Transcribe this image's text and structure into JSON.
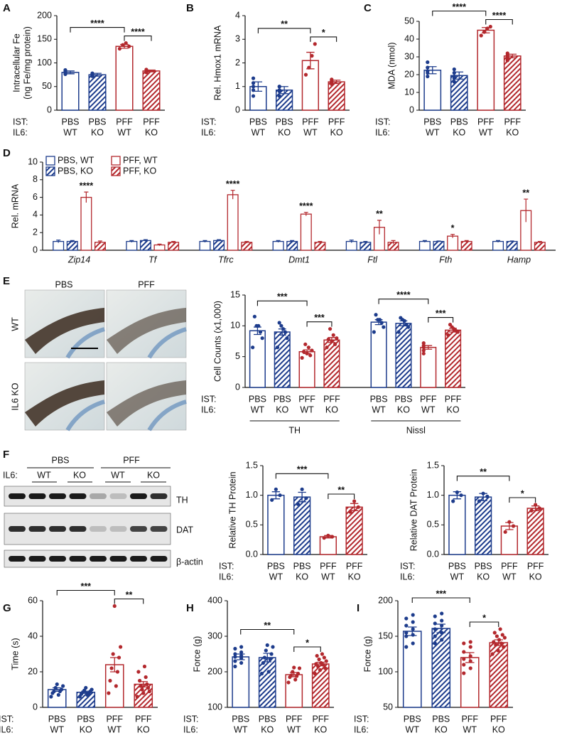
{
  "panel_labels": [
    "A",
    "B",
    "C",
    "D",
    "E",
    "F",
    "G",
    "H",
    "I"
  ],
  "micrographs": {
    "columns": [
      "PBS",
      "PFF"
    ],
    "rows": [
      "WT",
      "IL6 KO"
    ]
  },
  "blot": {
    "groups": [
      "PBS",
      "PFF"
    ],
    "row_label": "IL6:",
    "lanes": [
      "WT",
      "KO",
      "WT",
      "KO"
    ],
    "proteins": [
      "TH",
      "DAT",
      "β-actin"
    ]
  },
  "chart_data": [
    {
      "type": "bar",
      "ylabel": [
        "Intracellular Fe",
        "(ng Fe/mg protein)"
      ],
      "ylim": [
        0,
        200
      ],
      "yticks": [
        0,
        50,
        100,
        150,
        200
      ],
      "row_labels": [
        "IST:",
        "IL6:"
      ],
      "categories": [
        "PBS",
        "PBS",
        "PFF",
        "PFF"
      ],
      "subcategories": [
        "WT",
        "KO",
        "WT",
        "KO"
      ],
      "colors": [
        "#1d3c8c",
        "#1d3c8c",
        "#b3282d",
        "#b3282d"
      ],
      "hatched": [
        false,
        true,
        false,
        true
      ],
      "values": [
        80,
        75,
        135,
        83
      ],
      "errors": [
        3,
        3,
        4,
        2
      ],
      "points": [
        [
          78,
          82,
          85,
          76,
          80
        ],
        [
          72,
          76,
          78,
          73,
          76
        ],
        [
          130,
          138,
          142,
          135
        ],
        [
          80,
          84,
          86,
          82,
          83
        ]
      ],
      "significance": [
        {
          "bars": [
            0,
            2
          ],
          "label": "****"
        },
        {
          "bars": [
            2,
            3
          ],
          "label": "****"
        }
      ]
    },
    {
      "type": "bar",
      "ylabel": [
        "Rel. Hmox1 mRNA"
      ],
      "ylim": [
        0,
        4
      ],
      "yticks": [
        0,
        1,
        2,
        3,
        4
      ],
      "row_labels": [
        "IST:",
        "IL6:"
      ],
      "categories": [
        "PBS",
        "PBS",
        "PFF",
        "PFF"
      ],
      "subcategories": [
        "WT",
        "KO",
        "WT",
        "KO"
      ],
      "colors": [
        "#1d3c8c",
        "#1d3c8c",
        "#b3282d",
        "#b3282d"
      ],
      "hatched": [
        false,
        true,
        false,
        true
      ],
      "values": [
        1.0,
        0.85,
        2.1,
        1.2
      ],
      "errors": [
        0.2,
        0.15,
        0.35,
        0.07
      ],
      "points": [
        [
          0.6,
          0.85,
          1.0,
          1.15,
          1.35
        ],
        [
          0.6,
          0.8,
          0.85,
          1.0,
          1.0
        ],
        [
          1.5,
          1.8,
          2.3,
          2.8
        ],
        [
          1.1,
          1.15,
          1.2,
          1.25,
          1.3
        ]
      ],
      "significance": [
        {
          "bars": [
            0,
            2
          ],
          "label": "**"
        },
        {
          "bars": [
            2,
            3
          ],
          "label": "*"
        }
      ]
    },
    {
      "type": "bar",
      "ylabel": [
        "MDA (nmol)"
      ],
      "ylim": [
        0,
        50
      ],
      "yticks": [
        0,
        10,
        20,
        30,
        40,
        50
      ],
      "row_labels": [
        "IST:",
        "IL6:"
      ],
      "categories": [
        "PBS",
        "PBS",
        "PFF",
        "PFF"
      ],
      "subcategories": [
        "WT",
        "KO",
        "WT",
        "KO"
      ],
      "colors": [
        "#1d3c8c",
        "#1d3c8c",
        "#b3282d",
        "#b3282d"
      ],
      "hatched": [
        false,
        true,
        false,
        true
      ],
      "values": [
        22.5,
        19.5,
        45,
        30.5
      ],
      "errors": [
        2,
        2,
        1.5,
        1
      ],
      "points": [
        [
          19,
          21,
          22,
          24,
          27
        ],
        [
          16,
          18,
          19,
          21,
          23
        ],
        [
          42,
          44,
          46,
          47
        ],
        [
          28,
          29,
          30,
          31,
          32
        ]
      ],
      "significance": [
        {
          "bars": [
            0,
            2
          ],
          "label": "****"
        },
        {
          "bars": [
            2,
            3
          ],
          "label": "****"
        }
      ]
    },
    {
      "type": "grouped_bar",
      "ylabel": [
        "Rel. mRNA"
      ],
      "ylim": [
        0,
        10
      ],
      "yticks": [
        0,
        2,
        4,
        6,
        8,
        10
      ],
      "categories": [
        "Zip14",
        "Tf",
        "Tfrc",
        "Dmt1",
        "Ftl",
        "Fth",
        "Hamp"
      ],
      "series": [
        {
          "name": "PBS, WT",
          "color": "#1d3c8c",
          "hatched": false,
          "values": [
            1.0,
            1.0,
            1.0,
            1.0,
            1.0,
            1.0,
            1.0
          ],
          "errors": [
            0.15,
            0.1,
            0.1,
            0.1,
            0.15,
            0.1,
            0.1
          ]
        },
        {
          "name": "PBS, KO",
          "color": "#1d3c8c",
          "hatched": true,
          "values": [
            1.0,
            1.1,
            1.1,
            1.0,
            0.9,
            1.0,
            1.0
          ],
          "errors": [
            0.1,
            0.1,
            0.1,
            0.1,
            0.1,
            0.05,
            0.05
          ]
        },
        {
          "name": "PFF, WT",
          "color": "#b3282d",
          "hatched": false,
          "values": [
            6.0,
            0.6,
            6.3,
            4.1,
            2.6,
            1.6,
            4.5
          ],
          "errors": [
            0.6,
            0.1,
            0.5,
            0.2,
            0.8,
            0.2,
            1.3
          ]
        },
        {
          "name": "PFF, KO",
          "color": "#b3282d",
          "hatched": true,
          "values": [
            0.9,
            0.9,
            0.9,
            0.9,
            0.9,
            1.0,
            0.9
          ],
          "errors": [
            0.15,
            0.1,
            0.1,
            0.1,
            0.2,
            0.1,
            0.1
          ]
        }
      ],
      "significance": [
        "****",
        null,
        "****",
        "****",
        "**",
        "*",
        "**"
      ]
    },
    {
      "type": "bar",
      "ylabel": [
        "Cell Counts (x1,000)"
      ],
      "ylim": [
        0,
        15
      ],
      "yticks": [
        0,
        5,
        10,
        15
      ],
      "row_labels": [
        "IST:",
        "IL6:"
      ],
      "categories": [
        "PBS",
        "PBS",
        "PFF",
        "PFF",
        "PBS",
        "PBS",
        "PFF",
        "PFF"
      ],
      "subcategories": [
        "WT",
        "KO",
        "WT",
        "KO",
        "WT",
        "KO",
        "WT",
        "KO"
      ],
      "group_labels": [
        "TH",
        "Nissl"
      ],
      "colors": [
        "#1d3c8c",
        "#1d3c8c",
        "#b3282d",
        "#b3282d",
        "#1d3c8c",
        "#1d3c8c",
        "#b3282d",
        "#b3282d"
      ],
      "hatched": [
        false,
        true,
        false,
        true,
        false,
        true,
        false,
        true
      ],
      "values": [
        9.2,
        9.0,
        5.8,
        7.7,
        10.6,
        10.4,
        6.5,
        9.3
      ],
      "errors": [
        0.6,
        0.5,
        0.3,
        0.4,
        0.4,
        0.4,
        0.3,
        0.3
      ],
      "points": [
        [
          6.5,
          8,
          9,
          10,
          10,
          11.5
        ],
        [
          6.5,
          8,
          9,
          9.5,
          10,
          10.5
        ],
        [
          4.8,
          5.2,
          5.5,
          5.8,
          6,
          6.5,
          7
        ],
        [
          6.5,
          7,
          7.5,
          7.8,
          8,
          8.5,
          9.5
        ],
        [
          9,
          9.8,
          10.5,
          11,
          11,
          11.8
        ],
        [
          9,
          9.8,
          10.2,
          10.8,
          11,
          11.3
        ],
        [
          5.5,
          6,
          6.5,
          6.8,
          7.2
        ],
        [
          8.5,
          9,
          9.2,
          9.5,
          9.8,
          10.2
        ]
      ],
      "significance": [
        {
          "bars": [
            0,
            2
          ],
          "label": "***"
        },
        {
          "bars": [
            2,
            3
          ],
          "label": "***"
        },
        {
          "bars": [
            4,
            6
          ],
          "label": "****"
        },
        {
          "bars": [
            6,
            7
          ],
          "label": "***"
        }
      ]
    },
    {
      "type": "bar",
      "ylabel": [
        "Relative TH Protein"
      ],
      "ylim": [
        0,
        1.5
      ],
      "yticks": [
        {
          "value": 0,
          "label": "0.0"
        },
        0.5,
        {
          "value": 1,
          "label": "1.0"
        },
        1.5
      ],
      "row_labels": [
        "IST:",
        "IL6:"
      ],
      "categories": [
        "PBS",
        "PBS",
        "PFF",
        "PFF"
      ],
      "subcategories": [
        "WT",
        "KO",
        "WT",
        "KO"
      ],
      "colors": [
        "#1d3c8c",
        "#1d3c8c",
        "#b3282d",
        "#b3282d"
      ],
      "hatched": [
        false,
        true,
        false,
        true
      ],
      "values": [
        1.0,
        0.97,
        0.3,
        0.8
      ],
      "errors": [
        0.06,
        0.08,
        0.02,
        0.06
      ],
      "points": [
        [
          0.92,
          1.0,
          1.1
        ],
        [
          0.85,
          0.95,
          1.1
        ],
        [
          0.28,
          0.3,
          0.32
        ],
        [
          0.72,
          0.8,
          0.9
        ]
      ],
      "significance": [
        {
          "bars": [
            0,
            2
          ],
          "label": "***"
        },
        {
          "bars": [
            2,
            3
          ],
          "label": "**"
        }
      ]
    },
    {
      "type": "bar",
      "ylabel": [
        "Relative DAT Protein"
      ],
      "ylim": [
        0,
        1.5
      ],
      "yticks": [
        {
          "value": 0,
          "label": "0.0"
        },
        0.5,
        {
          "value": 1,
          "label": "1.0"
        },
        1.5
      ],
      "row_labels": [
        "IST:",
        "IL6:"
      ],
      "categories": [
        "PBS",
        "PBS",
        "PFF",
        "PFF"
      ],
      "subcategories": [
        "WT",
        "KO",
        "WT",
        "KO"
      ],
      "colors": [
        "#1d3c8c",
        "#1d3c8c",
        "#b3282d",
        "#b3282d"
      ],
      "hatched": [
        false,
        true,
        false,
        true
      ],
      "values": [
        1.0,
        0.97,
        0.48,
        0.78
      ],
      "errors": [
        0.06,
        0.06,
        0.06,
        0.04
      ],
      "points": [
        [
          0.9,
          1.0,
          1.05
        ],
        [
          0.9,
          0.98,
          1.03
        ],
        [
          0.38,
          0.48,
          0.55
        ],
        [
          0.74,
          0.78,
          0.84
        ]
      ],
      "significance": [
        {
          "bars": [
            0,
            2
          ],
          "label": "**"
        },
        {
          "bars": [
            2,
            3
          ],
          "label": "*"
        }
      ]
    },
    {
      "type": "bar",
      "ylabel": [
        "Time (s)"
      ],
      "ylim": [
        0,
        60
      ],
      "yticks": [
        0,
        20,
        40,
        60
      ],
      "row_labels": [
        "IST:",
        "IL6:"
      ],
      "categories": [
        "PBS",
        "PBS",
        "PFF",
        "PFF"
      ],
      "subcategories": [
        "WT",
        "KO",
        "WT",
        "KO"
      ],
      "colors": [
        "#1d3c8c",
        "#1d3c8c",
        "#b3282d",
        "#b3282d"
      ],
      "hatched": [
        false,
        true,
        false,
        true
      ],
      "values": [
        10,
        8.5,
        24,
        13
      ],
      "errors": [
        1,
        0.6,
        4,
        1.5
      ],
      "points": [
        [
          6,
          7,
          8,
          9,
          9,
          10,
          11,
          12,
          13
        ],
        [
          6,
          7,
          7.5,
          8,
          8.5,
          9,
          9.5,
          10,
          11
        ],
        [
          8,
          12,
          15,
          20,
          22,
          28,
          30,
          34,
          57
        ],
        [
          6,
          8,
          9,
          10,
          11,
          12,
          13,
          15,
          17,
          20,
          23
        ]
      ],
      "significance": [
        {
          "bars": [
            0,
            2
          ],
          "label": "***"
        },
        {
          "bars": [
            2,
            3
          ],
          "label": "**"
        }
      ]
    },
    {
      "type": "bar",
      "ylabel": [
        "Force (g)"
      ],
      "ylim": [
        100,
        400
      ],
      "yticks": [
        100,
        200,
        300,
        400
      ],
      "row_labels": [
        "IST:",
        "IL6:"
      ],
      "categories": [
        "PBS",
        "PBS",
        "PFF",
        "PFF"
      ],
      "subcategories": [
        "WT",
        "KO",
        "WT",
        "KO"
      ],
      "colors": [
        "#1d3c8c",
        "#1d3c8c",
        "#b3282d",
        "#b3282d"
      ],
      "hatched": [
        false,
        true,
        false,
        true
      ],
      "values": [
        242,
        240,
        192,
        222
      ],
      "errors": [
        8,
        12,
        6,
        5
      ],
      "points": [
        [
          215,
          225,
          230,
          238,
          242,
          245,
          250,
          255,
          265,
          270
        ],
        [
          195,
          200,
          225,
          235,
          240,
          250,
          260,
          270,
          275
        ],
        [
          170,
          178,
          185,
          188,
          190,
          195,
          200,
          210,
          212
        ],
        [
          195,
          205,
          210,
          215,
          220,
          222,
          225,
          230,
          235,
          240,
          245,
          250
        ]
      ],
      "significance": [
        {
          "bars": [
            0,
            2
          ],
          "label": "**"
        },
        {
          "bars": [
            2,
            3
          ],
          "label": "*"
        }
      ]
    },
    {
      "type": "bar",
      "ylabel": [
        "Force (g)"
      ],
      "ylim": [
        50,
        200
      ],
      "yticks": [
        50,
        100,
        150,
        200
      ],
      "row_labels": [
        "IST:",
        "IL6:"
      ],
      "categories": [
        "PBS",
        "PBS",
        "PFF",
        "PFF"
      ],
      "subcategories": [
        "WT",
        "KO",
        "WT",
        "KO"
      ],
      "colors": [
        "#1d3c8c",
        "#1d3c8c",
        "#b3282d",
        "#b3282d"
      ],
      "hatched": [
        false,
        true,
        false,
        true
      ],
      "values": [
        157,
        161,
        120,
        141
      ],
      "errors": [
        6,
        6,
        7,
        4
      ],
      "points": [
        [
          135,
          140,
          150,
          152,
          155,
          160,
          165,
          170,
          175,
          180
        ],
        [
          140,
          145,
          150,
          155,
          160,
          165,
          168,
          172,
          178,
          182
        ],
        [
          98,
          105,
          110,
          115,
          118,
          122,
          128,
          135,
          140,
          142
        ],
        [
          125,
          130,
          135,
          138,
          140,
          142,
          145,
          148,
          150,
          152,
          155,
          160
        ]
      ],
      "significance": [
        {
          "bars": [
            0,
            2
          ],
          "label": "***"
        },
        {
          "bars": [
            2,
            3
          ],
          "label": "*"
        }
      ]
    }
  ]
}
